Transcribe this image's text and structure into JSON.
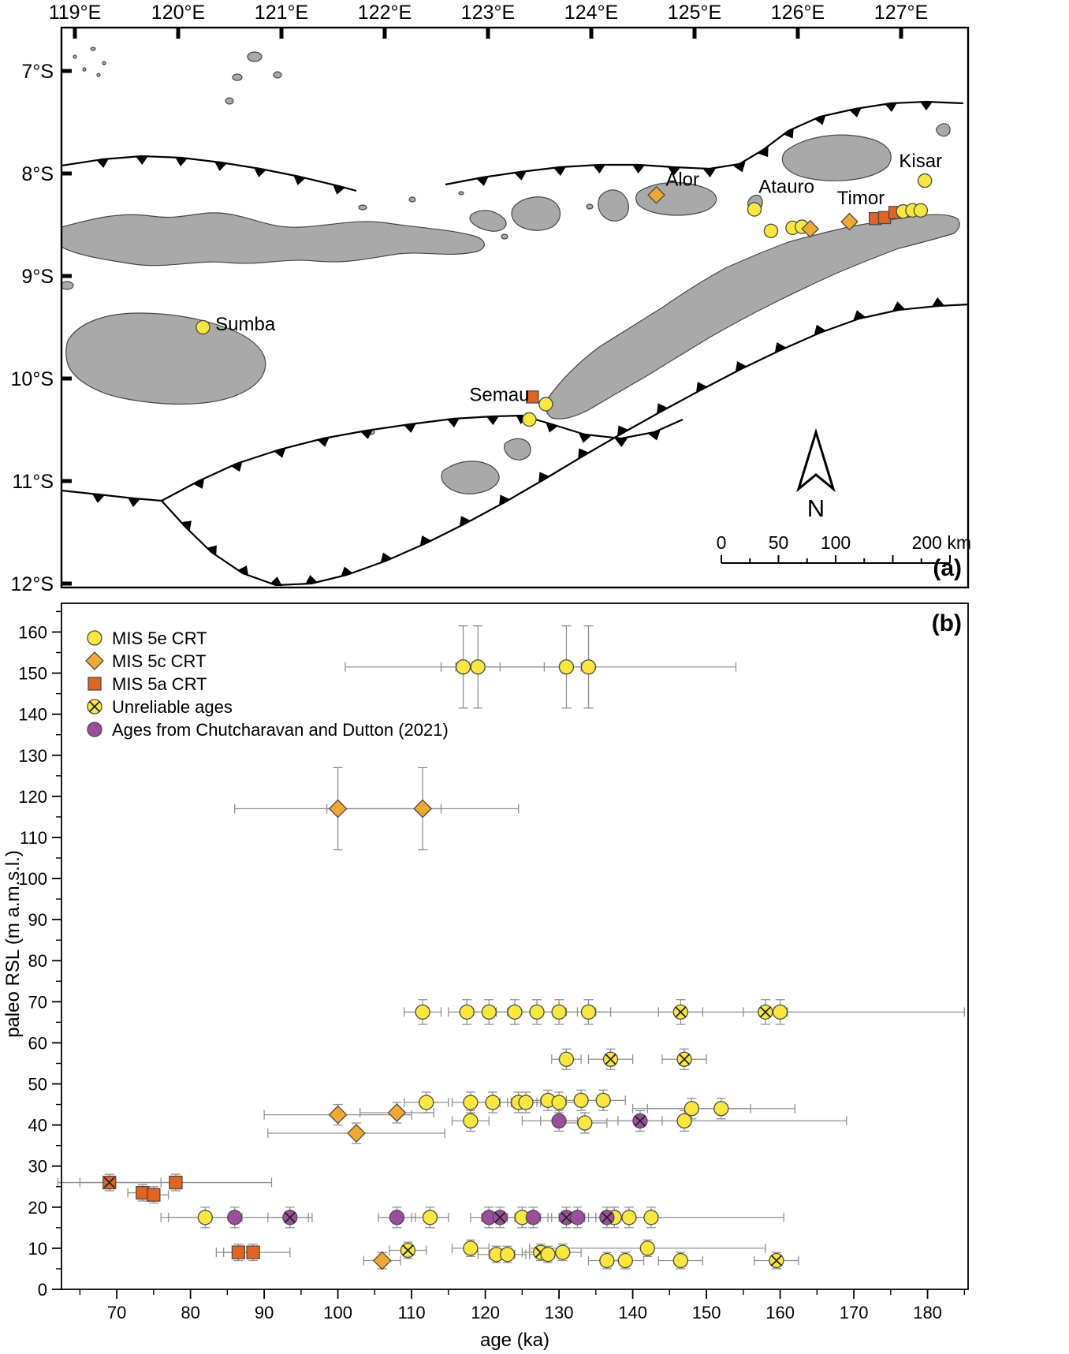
{
  "figure": {
    "panel_a_label": "(a)",
    "panel_b_label": "(b)"
  },
  "map": {
    "lon_labels": [
      "119°E",
      "120°E",
      "121°E",
      "122°E",
      "123°E",
      "124°E",
      "125°E",
      "126°E",
      "127°E"
    ],
    "lon_values": [
      119,
      120,
      121,
      122,
      123,
      124,
      125,
      126,
      127
    ],
    "lat_labels": [
      "7°S",
      "8°S",
      "9°S",
      "10°S",
      "11°S",
      "12°S"
    ],
    "lat_values": [
      7,
      8,
      9,
      10,
      11,
      12
    ],
    "place_labels": [
      {
        "text": "Alor",
        "lon": 124.72,
        "lat": 8.12
      },
      {
        "text": "Atauro",
        "lon": 125.62,
        "lat": 8.19
      },
      {
        "text": "Timor",
        "lon": 126.38,
        "lat": 8.3
      },
      {
        "text": "Kisar",
        "lon": 126.98,
        "lat": 7.94
      },
      {
        "text": "Sumba",
        "lon": 120.36,
        "lat": 9.53
      },
      {
        "text": "Semau",
        "lon": 122.82,
        "lat": 10.22
      }
    ],
    "sites": [
      {
        "type": "diamond",
        "lon": 124.63,
        "lat": 8.21
      },
      {
        "type": "circle",
        "lon": 125.58,
        "lat": 8.35
      },
      {
        "type": "circle",
        "lon": 125.74,
        "lat": 8.56
      },
      {
        "type": "circle",
        "lon": 125.95,
        "lat": 8.53
      },
      {
        "type": "circle",
        "lon": 126.04,
        "lat": 8.52
      },
      {
        "type": "diamond",
        "lon": 126.12,
        "lat": 8.54
      },
      {
        "type": "diamond",
        "lon": 126.5,
        "lat": 8.47
      },
      {
        "type": "square",
        "lon": 126.75,
        "lat": 8.44
      },
      {
        "type": "square",
        "lon": 126.84,
        "lat": 8.43
      },
      {
        "type": "square",
        "lon": 126.94,
        "lat": 8.38
      },
      {
        "type": "circle",
        "lon": 127.02,
        "lat": 8.37
      },
      {
        "type": "circle",
        "lon": 127.11,
        "lat": 8.36
      },
      {
        "type": "circle",
        "lon": 127.19,
        "lat": 8.36
      },
      {
        "type": "circle",
        "lon": 127.23,
        "lat": 8.07
      },
      {
        "type": "circle",
        "lon": 120.24,
        "lat": 9.5
      },
      {
        "type": "square",
        "lon": 123.43,
        "lat": 10.18
      },
      {
        "type": "circle",
        "lon": 123.56,
        "lat": 10.25
      },
      {
        "type": "circle",
        "lon": 123.4,
        "lat": 10.4
      }
    ],
    "north_label": "N",
    "scale_bar": {
      "length_km": 200,
      "labels": [
        {
          "km": 0,
          "text": "0"
        },
        {
          "km": 50,
          "text": "50"
        },
        {
          "km": 100,
          "text": "100"
        },
        {
          "km": 200,
          "text": "200 km"
        }
      ]
    },
    "colors": {
      "mis5e": "#f9e83a",
      "mis5c": "#f2a72e",
      "mis5a": "#e2641f",
      "purple": "#9d4d9e",
      "land": "#a9a9a9"
    }
  },
  "chart_data": {
    "type": "scatter",
    "title": "",
    "xlabel": "age (ka)",
    "ylabel": "paleo RSL (m a.m.s.l.)",
    "xlim": [
      62.5,
      185.5
    ],
    "ylim": [
      0,
      167
    ],
    "xticks": [
      70,
      80,
      90,
      100,
      110,
      120,
      130,
      140,
      150,
      160,
      170,
      180
    ],
    "yticks": [
      0,
      10,
      20,
      30,
      40,
      50,
      60,
      70,
      80,
      90,
      100,
      110,
      120,
      130,
      140,
      150,
      160
    ],
    "grid": false,
    "legend_position": "top-left",
    "legend": [
      {
        "label": "MIS 5e CRT",
        "marker": "circle",
        "color": "#f9e83a",
        "x_mark": false
      },
      {
        "label": "MIS 5c CRT",
        "marker": "diamond",
        "color": "#f2a72e",
        "x_mark": false
      },
      {
        "label": "MIS 5a CRT",
        "marker": "square",
        "color": "#e2641f",
        "x_mark": false
      },
      {
        "label": "Unreliable ages",
        "marker": "circle",
        "color": "#f9e83a",
        "x_mark": true
      },
      {
        "label": "Ages from Chutcharavan and Dutton (2021)",
        "marker": "circle",
        "color": "#9d4d9e",
        "x_mark": false
      }
    ],
    "point_format": [
      "age_ka",
      "paleo_rsl_m",
      "age_err_ka",
      "rsl_err_m",
      "unreliable_flag"
    ],
    "series": [
      {
        "name": "MIS 5e CRT",
        "marker": "circle",
        "color": "#f9e83a",
        "points": [
          [
            117,
            151.5,
            16,
            10,
            0
          ],
          [
            119,
            151.5,
            3,
            10,
            0
          ],
          [
            131,
            151.5,
            3,
            10,
            0
          ],
          [
            134,
            151.5,
            20,
            10,
            0
          ],
          [
            111.5,
            67.5,
            2.5,
            3,
            0
          ],
          [
            117.5,
            67.5,
            2.5,
            3,
            0
          ],
          [
            120.5,
            67.5,
            2.5,
            3,
            0
          ],
          [
            124,
            67.5,
            2.5,
            3,
            0
          ],
          [
            127,
            67.5,
            2.5,
            3,
            0
          ],
          [
            130,
            67.5,
            2.5,
            3,
            0
          ],
          [
            134,
            67.5,
            3,
            3,
            0
          ],
          [
            146.5,
            67.5,
            3,
            3,
            1
          ],
          [
            158,
            67.5,
            3,
            3,
            1
          ],
          [
            160,
            67.5,
            25,
            3,
            0
          ],
          [
            131,
            56,
            2,
            2.5,
            0
          ],
          [
            137,
            56,
            3,
            2.5,
            1
          ],
          [
            147,
            56,
            3,
            2.5,
            1
          ],
          [
            112,
            45.5,
            3,
            2.5,
            0
          ],
          [
            118,
            45.5,
            2.5,
            2.5,
            0
          ],
          [
            121,
            45.5,
            2.5,
            2.5,
            0
          ],
          [
            124.5,
            45.5,
            2.5,
            2.5,
            0
          ],
          [
            125.5,
            45.5,
            2.5,
            2.5,
            0
          ],
          [
            128.5,
            46,
            2.5,
            2.5,
            0
          ],
          [
            130,
            45.5,
            2.5,
            2.5,
            0
          ],
          [
            133,
            46,
            3,
            2.5,
            0
          ],
          [
            136,
            46,
            3,
            2.5,
            0
          ],
          [
            148,
            44,
            8,
            2.5,
            0
          ],
          [
            152,
            44,
            10,
            2.5,
            0
          ],
          [
            118,
            41,
            2.5,
            2.5,
            0
          ],
          [
            133.5,
            40.5,
            3,
            2.5,
            0
          ],
          [
            147,
            41,
            22,
            2.5,
            0
          ],
          [
            82,
            17.5,
            5,
            2.5,
            0
          ],
          [
            112.5,
            17.5,
            2.5,
            2.5,
            0
          ],
          [
            125,
            17.5,
            2.5,
            2.5,
            0
          ],
          [
            137.5,
            17.5,
            2.5,
            2.5,
            0
          ],
          [
            139.5,
            17.5,
            2.5,
            2.5,
            0
          ],
          [
            142.5,
            17.5,
            18,
            2.5,
            0
          ],
          [
            109.5,
            9.5,
            2.5,
            2,
            1
          ],
          [
            118,
            10,
            2.5,
            2,
            0
          ],
          [
            121.5,
            8.5,
            2.5,
            2,
            0
          ],
          [
            123,
            8.5,
            2.5,
            2,
            0
          ],
          [
            127.5,
            9,
            2.5,
            2,
            1
          ],
          [
            128.5,
            8.5,
            2.5,
            2,
            0
          ],
          [
            130.5,
            9,
            2.5,
            2,
            0
          ],
          [
            136.5,
            7,
            2.5,
            2,
            0
          ],
          [
            139,
            7,
            2.5,
            2,
            0
          ],
          [
            142,
            10,
            16,
            2,
            0
          ],
          [
            146.5,
            7,
            3,
            2,
            0
          ],
          [
            159.5,
            7,
            3,
            2,
            1
          ]
        ]
      },
      {
        "name": "MIS 5c CRT",
        "marker": "diamond",
        "color": "#f2a72e",
        "points": [
          [
            100,
            117,
            14,
            10,
            0
          ],
          [
            111.5,
            117,
            13,
            10,
            0
          ],
          [
            100,
            42.5,
            10,
            2.5,
            0
          ],
          [
            102.5,
            38,
            12,
            2.5,
            0
          ],
          [
            108,
            43,
            5,
            2.5,
            0
          ],
          [
            106,
            7,
            2.5,
            2,
            0
          ]
        ]
      },
      {
        "name": "MIS 5a CRT",
        "marker": "square",
        "color": "#e2641f",
        "points": [
          [
            69,
            26,
            7,
            2,
            1
          ],
          [
            73.5,
            23.5,
            2,
            2,
            0
          ],
          [
            75,
            23,
            2,
            2,
            0
          ],
          [
            78,
            26,
            13,
            2,
            0
          ],
          [
            86.5,
            9,
            2,
            2,
            0
          ],
          [
            88.5,
            9,
            5,
            2,
            0
          ]
        ]
      },
      {
        "name": "Ages from Chutcharavan and Dutton (2021)",
        "marker": "circle",
        "color": "#9d4d9e",
        "points": [
          [
            86,
            17.5,
            10,
            2.5,
            0
          ],
          [
            93.5,
            17.5,
            3,
            2.5,
            1
          ],
          [
            108,
            17.5,
            2.5,
            2.5,
            0
          ],
          [
            120.5,
            17.5,
            2.5,
            2.5,
            0
          ],
          [
            122,
            17.5,
            2.5,
            2.5,
            1
          ],
          [
            126.5,
            17.5,
            2.5,
            2.5,
            0
          ],
          [
            131,
            17.5,
            2.5,
            2.5,
            1
          ],
          [
            132.5,
            17.5,
            2.5,
            2.5,
            0
          ],
          [
            136.5,
            17.5,
            2.5,
            2.5,
            1
          ],
          [
            130,
            41,
            2.5,
            2.5,
            0
          ],
          [
            141,
            41,
            3,
            2.5,
            1
          ]
        ]
      }
    ]
  }
}
